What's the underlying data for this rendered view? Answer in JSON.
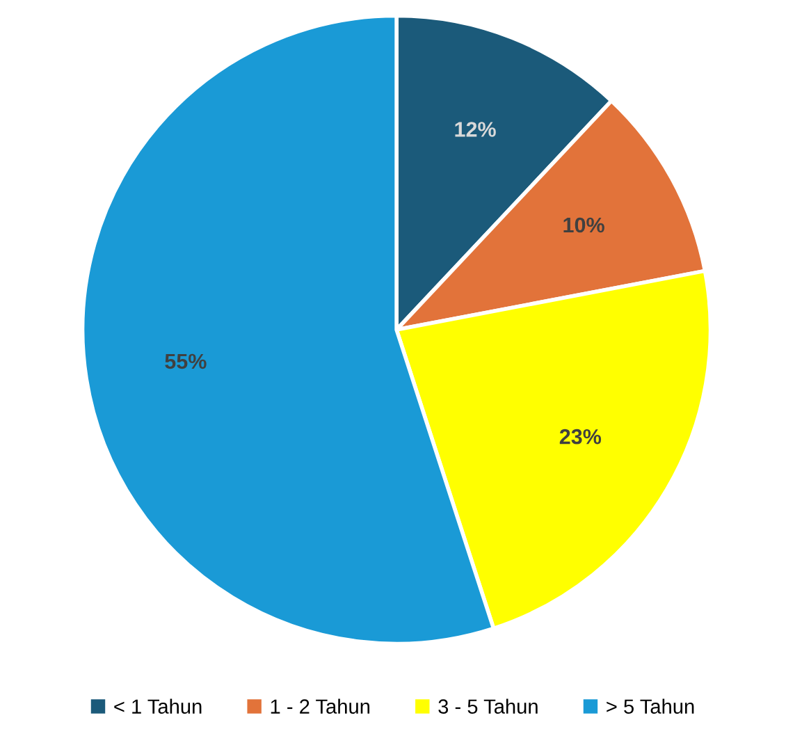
{
  "chart_data": {
    "type": "pie",
    "categories": [
      "< 1 Tahun",
      "1 - 2 Tahun",
      "3 - 5 Tahun",
      "> 5 Tahun"
    ],
    "values": [
      12,
      10,
      23,
      55
    ],
    "colors": [
      "#1b5a7a",
      "#e2733a",
      "#ffff00",
      "#1a9ad6"
    ],
    "value_labels": [
      "12%",
      "10%",
      "23%",
      "55%"
    ],
    "legend": "bottom"
  }
}
